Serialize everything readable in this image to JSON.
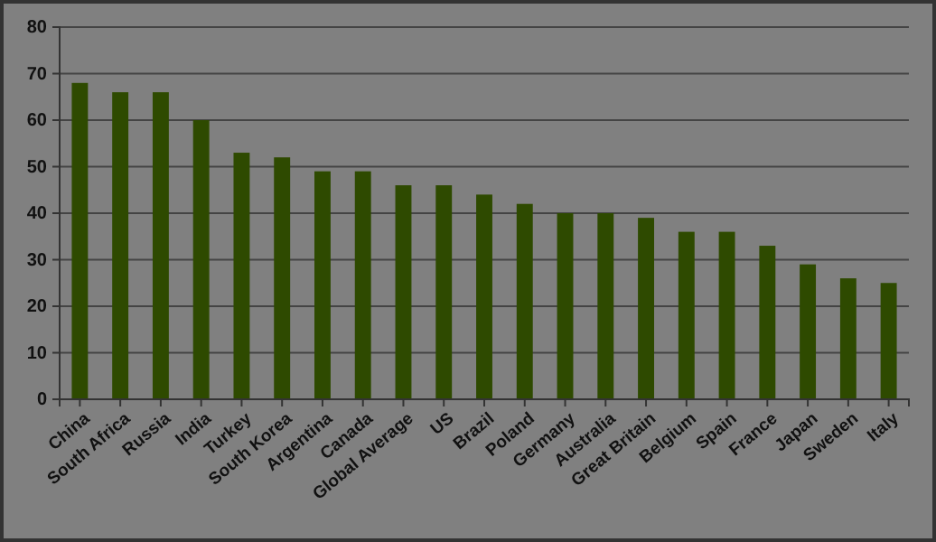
{
  "chart_data": {
    "type": "bar",
    "categories": [
      "China",
      "South Africa",
      "Russia",
      "India",
      "Turkey",
      "South Korea",
      "Argentina",
      "Canada",
      "Global Average",
      "US",
      "Brazil",
      "Poland",
      "Germany",
      "Australia",
      "Great Britain",
      "Belgium",
      "Spain",
      "France",
      "Japan",
      "Sweden",
      "Italy"
    ],
    "values": [
      68,
      66,
      66,
      60,
      53,
      52,
      49,
      49,
      46,
      46,
      44,
      42,
      40,
      40,
      39,
      36,
      36,
      33,
      29,
      26,
      25
    ],
    "color": "#2e4a00",
    "ylim": [
      0,
      80
    ],
    "yticks": [
      0,
      10,
      20,
      30,
      40,
      50,
      60,
      70,
      80
    ],
    "grid": "y"
  }
}
